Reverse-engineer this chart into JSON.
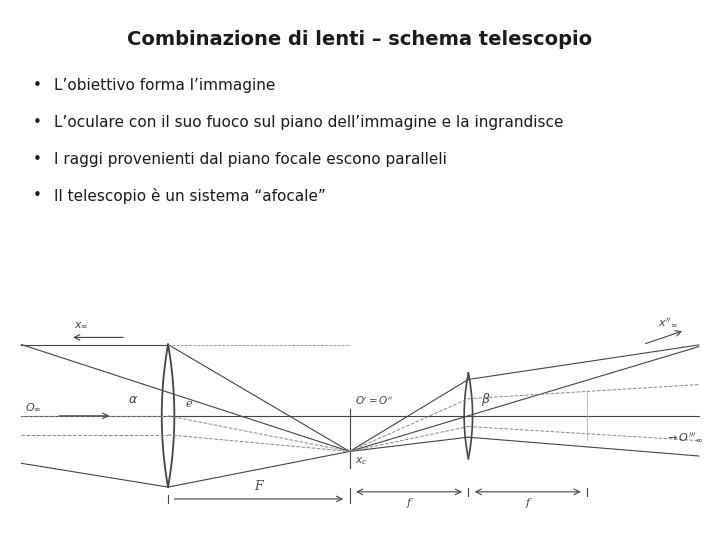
{
  "title": "Combinazione di lenti – schema telescopio",
  "title_fontsize": 14,
  "bullet_points": [
    "L’obiettivo forma l’immagine",
    "L’oculare con il suo fuoco sul piano dell’immagine e la ingrandisce",
    "I raggi provenienti dal piano focale escono paralleli",
    "Il telescopio è un sistema “afocale”"
  ],
  "bullet_fontsize": 11,
  "bg_color": "#ffffff",
  "text_color": "#1a1a1a",
  "diagram_color": "#444444",
  "dashed_color": "#888888",
  "light_color": "#aaaaaa"
}
